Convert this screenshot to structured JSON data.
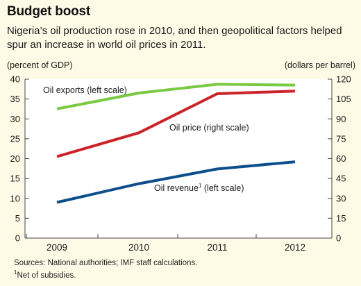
{
  "title": "Budget boost",
  "subtitle": "Nigeria’s oil production rose in 2010, and then geopolitical factors helped spur an increase in world oil prices in 2011.",
  "sources": "Sources: National authorities; IMF staff calculations.",
  "footnote": {
    "marker": "1",
    "text": "Net of subsidies."
  },
  "colors": {
    "background": "#fdfbe6",
    "plot_background": "#ffffff",
    "oil_exports": "#7ac943",
    "oil_price": "#cc2229",
    "oil_revenue": "#0d4f8b"
  },
  "chart_data": {
    "type": "line",
    "title": "Budget boost",
    "x": [
      "2009",
      "2010",
      "2011",
      "2012"
    ],
    "left_axis": {
      "label": "(percent of GDP)",
      "ylim": [
        0,
        40
      ],
      "ticks": [
        0,
        5,
        10,
        15,
        20,
        25,
        30,
        35,
        40
      ]
    },
    "right_axis": {
      "label": "(dollars per barrel)",
      "ylim": [
        0,
        120
      ],
      "ticks": [
        0,
        15,
        30,
        45,
        60,
        75,
        90,
        105,
        120
      ]
    },
    "grid": false,
    "series": [
      {
        "key": "oil_exports",
        "name": "Oil exports (left scale)",
        "axis": "left",
        "values": [
          32.5,
          36.5,
          38.7,
          38.5
        ]
      },
      {
        "key": "oil_price",
        "name": "Oil price (right scale)",
        "axis": "right",
        "values": [
          61.5,
          79.5,
          109,
          111
        ]
      },
      {
        "key": "oil_revenue",
        "name": "Oil revenue",
        "name_suffix": " (left scale)",
        "name_marker": "1",
        "axis": "left",
        "values": [
          9,
          13.7,
          17.4,
          19.2
        ]
      }
    ]
  }
}
